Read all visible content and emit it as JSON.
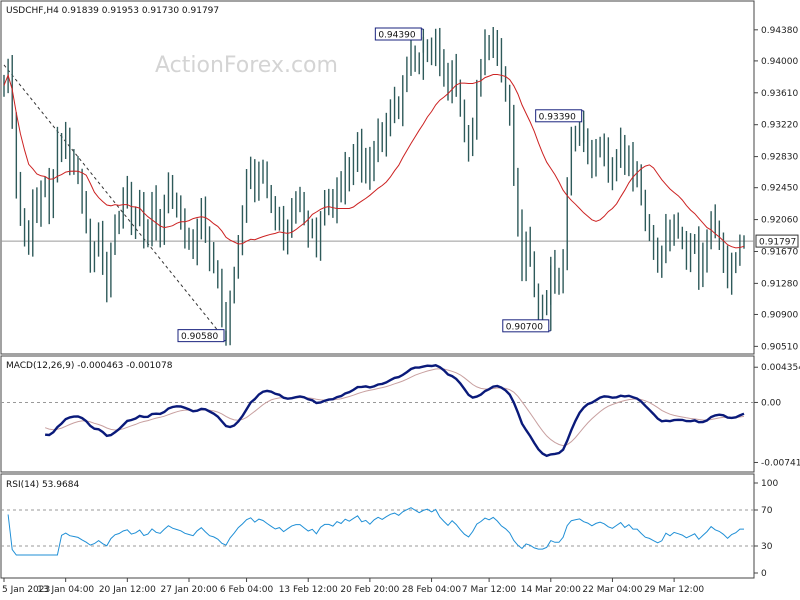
{
  "header": {
    "symbol_title": "USDCHF,H4 0.91839 0.91953 0.91730 0.91797",
    "watermark": "ActionForex.com",
    "macd_title": "MACD(12,26,9) -0.000463 -0.001078",
    "rsi_title": "RSI(14) 53.9684"
  },
  "colors": {
    "candle": "#2e5a5a",
    "sma": "#cc2222",
    "macd_line": "#0a1a7a",
    "signal_line": "#c8a0a0",
    "rsi_line": "#1f8fd6",
    "current_line": "#9a9a9a",
    "dashed_trend": "#333333"
  },
  "chart_data": [
    {
      "type": "candlestick",
      "title": "USDCHF,H4",
      "ohlc_last": {
        "open": 0.91839,
        "high": 0.91953,
        "low": 0.9173,
        "close": 0.91797
      },
      "current_price_label": "0.91797",
      "ylim": [
        0.9049,
        0.945
      ],
      "y_ticks": [
        "0.94380",
        "0.94000",
        "0.93610",
        "0.93220",
        "0.92830",
        "0.92450",
        "0.92060",
        "0.91670",
        "0.91280",
        "0.90900",
        "0.90510"
      ],
      "x_ticks": [
        "5 Jan 2023",
        "13 Jan 04:00",
        "20 Jan 12:00",
        "27 Jan 20:00",
        "6 Feb 04:00",
        "13 Feb 12:00",
        "20 Feb 20:00",
        "28 Feb 04:00",
        "7 Mar 12:00",
        "14 Mar 20:00",
        "22 Mar 04:00",
        "29 Mar 12:00"
      ],
      "annotations": [
        {
          "text": "0.94390",
          "value": 0.9439,
          "index": 102
        },
        {
          "text": "0.93390",
          "value": 0.9339,
          "index": 141
        },
        {
          "text": "0.90580",
          "value": 0.9058,
          "index": 54
        },
        {
          "text": "0.90700",
          "value": 0.907,
          "index": 133
        }
      ],
      "trendline": [
        {
          "index": 0,
          "value": 0.9395
        },
        {
          "index": 54,
          "value": 0.9058
        }
      ],
      "close_series": [
        0.937,
        0.9395,
        0.933,
        0.925,
        0.921,
        0.919,
        0.917,
        0.923,
        0.921,
        0.924,
        0.925,
        0.922,
        0.926,
        0.93,
        0.929,
        0.931,
        0.928,
        0.927,
        0.926,
        0.923,
        0.92,
        0.916,
        0.917,
        0.919,
        0.915,
        0.912,
        0.917,
        0.92,
        0.921,
        0.923,
        0.924,
        0.92,
        0.921,
        0.923,
        0.918,
        0.919,
        0.923,
        0.92,
        0.919,
        0.922,
        0.925,
        0.923,
        0.922,
        0.921,
        0.919,
        0.918,
        0.917,
        0.92,
        0.922,
        0.919,
        0.916,
        0.915,
        0.913,
        0.909,
        0.907,
        0.911,
        0.914,
        0.918,
        0.921,
        0.925,
        0.927,
        0.924,
        0.927,
        0.926,
        0.924,
        0.922,
        0.92,
        0.921,
        0.918,
        0.92,
        0.922,
        0.923,
        0.923,
        0.921,
        0.919,
        0.92,
        0.917,
        0.921,
        0.923,
        0.923,
        0.922,
        0.925,
        0.924,
        0.927,
        0.926,
        0.928,
        0.93,
        0.927,
        0.928,
        0.926,
        0.929,
        0.931,
        0.93,
        0.932,
        0.934,
        0.935,
        0.934,
        0.937,
        0.939,
        0.941,
        0.94,
        0.939,
        0.941,
        0.942,
        0.941,
        0.943,
        0.94,
        0.938,
        0.936,
        0.939,
        0.937,
        0.934,
        0.931,
        0.929,
        0.932,
        0.937,
        0.939,
        0.942,
        0.941,
        0.943,
        0.941,
        0.938,
        0.936,
        0.933,
        0.926,
        0.92,
        0.915,
        0.918,
        0.916,
        0.912,
        0.91,
        0.91,
        0.911,
        0.915,
        0.913,
        0.913,
        0.916,
        0.925,
        0.93,
        0.931,
        0.932,
        0.93,
        0.929,
        0.927,
        0.929,
        0.93,
        0.929,
        0.927,
        0.926,
        0.928,
        0.93,
        0.927,
        0.929,
        0.926,
        0.926,
        0.923,
        0.92,
        0.919,
        0.917,
        0.915,
        0.916,
        0.92,
        0.918,
        0.92,
        0.919,
        0.918,
        0.916,
        0.917,
        0.918,
        0.914,
        0.916,
        0.918,
        0.921,
        0.919,
        0.918,
        0.916,
        0.913,
        0.915,
        0.916,
        0.918,
        0.918
      ]
    },
    {
      "type": "line",
      "title": "MACD(12,26,9)",
      "values_last": {
        "macd": -0.000463,
        "signal": -0.001078
      },
      "ylim": [
        -0.0081,
        0.005
      ],
      "y_ticks": [
        "0.004354",
        "0.00",
        "-0.007417"
      ],
      "y_tick_values": [
        0.004354,
        0.0,
        -0.007417
      ]
    },
    {
      "type": "line",
      "title": "RSI(14)",
      "value_last": 53.9684,
      "ylim": [
        0,
        100
      ],
      "y_ticks": [
        "100",
        "70",
        "30",
        "0"
      ],
      "levels": [
        70,
        30
      ]
    }
  ]
}
